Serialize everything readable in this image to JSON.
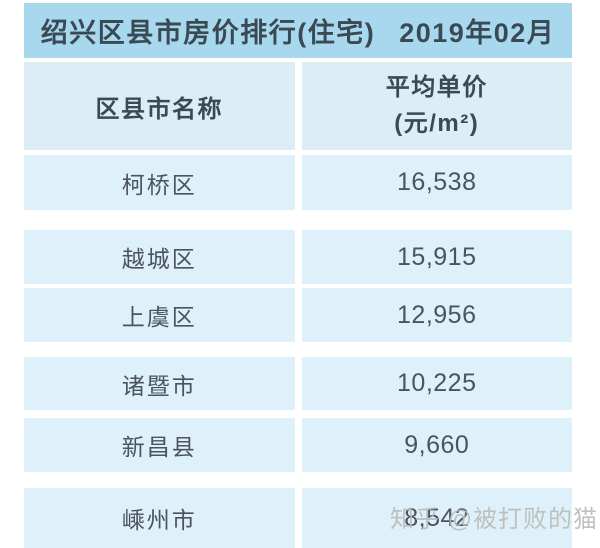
{
  "title": {
    "main": "绍兴区县市房价排行(住宅)",
    "date": "2019年02月"
  },
  "table": {
    "col1_header": "区县市名称",
    "col2_header_line1": "平均单价",
    "col2_header_line2": "(元/m²)",
    "rows": [
      {
        "name": "柯桥区",
        "price": "16,538"
      },
      {
        "name": "越城区",
        "price": "15,915"
      },
      {
        "name": "上虞区",
        "price": "12,956"
      },
      {
        "name": "诸暨市",
        "price": "10,225"
      },
      {
        "name": "新昌县",
        "price": "9,660"
      },
      {
        "name": "嵊州市",
        "price": "8,542"
      }
    ]
  },
  "watermark": "知乎 @被打败的猫",
  "colors": {
    "title_band": "#a8d8ed",
    "header_cell": "#dcedf8",
    "row_cell": "#def0fa",
    "title_text": "#3a4a55",
    "body_text": "#4b545e",
    "watermark_color": "#b9bdb8"
  }
}
